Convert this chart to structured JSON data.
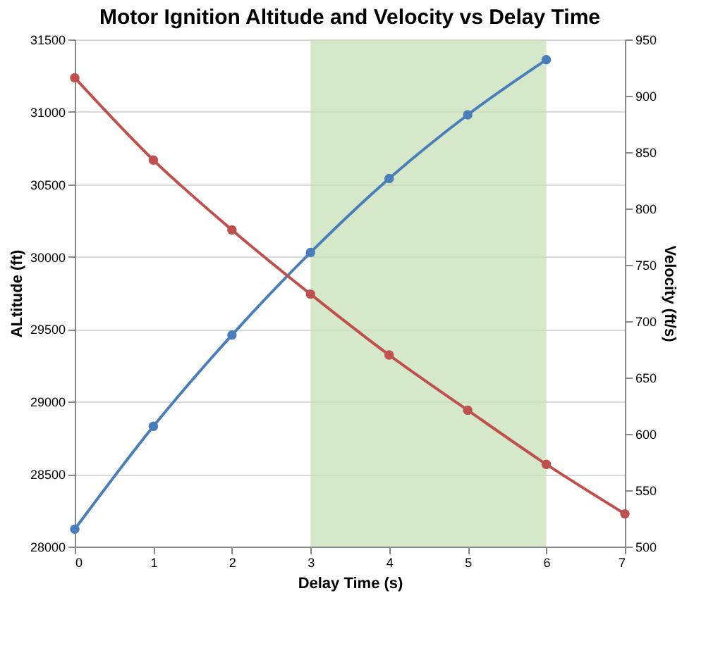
{
  "chart_data": {
    "type": "line",
    "title": "Motor Ignition Altitude and Velocity vs Delay Time",
    "xlabel": "Delay Time (s)",
    "ylabel": "ALtitude (ft)",
    "y2label": "Velocity (ft/s)",
    "x": [
      0,
      1,
      2,
      3,
      4,
      5,
      6,
      7
    ],
    "series": [
      {
        "color": "#4a7ebb",
        "values": [
          28120,
          28830,
          29460,
          30030,
          30540,
          30980,
          31360,
          null
        ]
      },
      {
        "color": "#c0504d",
        "axis": "y2",
        "values": [
          916,
          843,
          781,
          724,
          670,
          621,
          573,
          529
        ]
      }
    ],
    "xlim": [
      0,
      7
    ],
    "xticks": [
      0,
      1,
      2,
      3,
      4,
      5,
      6,
      7
    ],
    "ylim": [
      28000,
      31500
    ],
    "yticks": [
      28000,
      28500,
      29000,
      29500,
      30000,
      30500,
      31000,
      31500
    ],
    "y2lim": [
      500,
      950
    ],
    "y2ticks": [
      500,
      550,
      600,
      650,
      700,
      750,
      800,
      850,
      900,
      950
    ],
    "bands": [
      {
        "axis": "x",
        "from": 3,
        "to": 6,
        "color": "#c4deb4"
      }
    ],
    "grid": "y",
    "marker": "circle"
  }
}
